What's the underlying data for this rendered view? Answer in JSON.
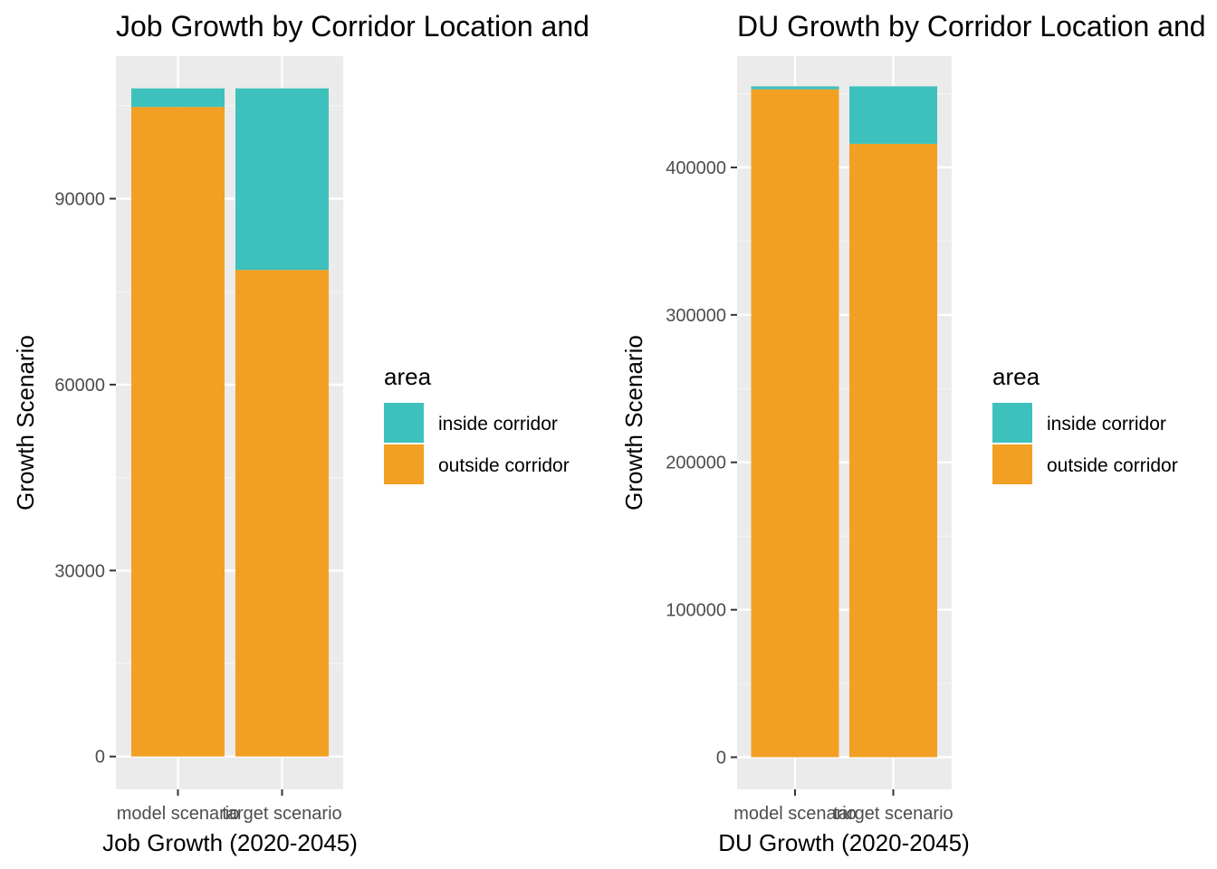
{
  "colors": {
    "panel_bg": "#ebebeb",
    "grid_major": "#ffffff",
    "grid_minor": "#f5f5f5",
    "inside": "#3ec1bc",
    "outside": "#f2a024"
  },
  "legend": {
    "title": "area",
    "items": [
      {
        "label": "inside corridor",
        "color": "#3ec1bc"
      },
      {
        "label": "outside corridor",
        "color": "#f2a024"
      }
    ]
  },
  "chart_data": [
    {
      "type": "bar",
      "stacked": true,
      "title": "Job Growth by Corridor Location and",
      "xlabel": "Job Growth (2020-2045)",
      "ylabel": "Growth Scenario",
      "categories": [
        "model scenario",
        "target scenario"
      ],
      "series": [
        {
          "name": "outside corridor",
          "values": [
            104800,
            78500
          ]
        },
        {
          "name": "inside corridor",
          "values": [
            3000,
            29300
          ]
        }
      ],
      "yticks": [
        0,
        30000,
        60000,
        90000
      ],
      "ylim": [
        -5300,
        113000
      ],
      "grid": true,
      "legend_position": "right"
    },
    {
      "type": "bar",
      "stacked": true,
      "title": "DU Growth by Corridor Location and",
      "xlabel": "DU Growth (2020-2045)",
      "ylabel": "Growth Scenario",
      "categories": [
        "model scenario",
        "target scenario"
      ],
      "series": [
        {
          "name": "outside corridor",
          "values": [
            453000,
            416000
          ]
        },
        {
          "name": "inside corridor",
          "values": [
            2000,
            39000
          ]
        }
      ],
      "yticks": [
        0,
        100000,
        200000,
        300000,
        400000
      ],
      "ylim": [
        -21800,
        475500
      ],
      "grid": true,
      "legend_position": "right"
    }
  ]
}
